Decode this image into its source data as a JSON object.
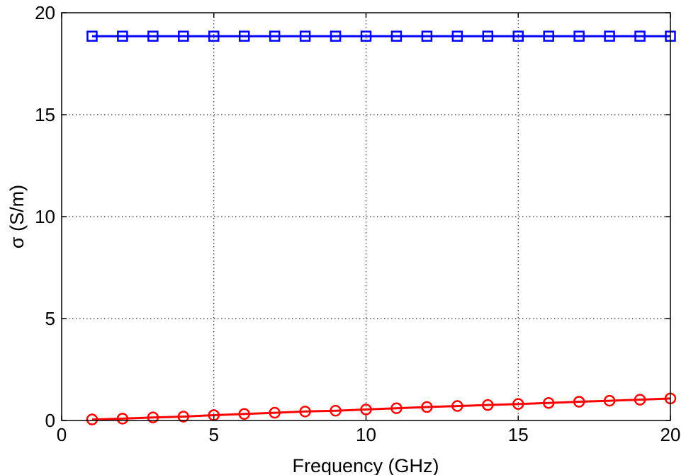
{
  "chart_data": {
    "type": "line",
    "title": "",
    "xlabel": "Frequency (GHz)",
    "ylabel": "σ (S/m)",
    "xlim": [
      0,
      20
    ],
    "ylim": [
      0,
      20
    ],
    "xticks": [
      0,
      5,
      10,
      15,
      20
    ],
    "yticks": [
      0,
      5,
      10,
      15,
      20
    ],
    "grid": true,
    "x": [
      1,
      2,
      3,
      4,
      5,
      6,
      7,
      8,
      9,
      10,
      11,
      12,
      13,
      14,
      15,
      16,
      17,
      18,
      19,
      20
    ],
    "series": [
      {
        "color": "#0000ff",
        "marker": "square",
        "values": [
          18.85,
          18.85,
          18.85,
          18.85,
          18.85,
          18.85,
          18.85,
          18.85,
          18.85,
          18.85,
          18.85,
          18.85,
          18.85,
          18.85,
          18.85,
          18.85,
          18.85,
          18.85,
          18.85,
          18.85
        ]
      },
      {
        "color": "#ff0000",
        "marker": "circle",
        "values": [
          0.05,
          0.09,
          0.15,
          0.19,
          0.26,
          0.32,
          0.38,
          0.44,
          0.48,
          0.54,
          0.6,
          0.66,
          0.71,
          0.76,
          0.81,
          0.86,
          0.92,
          0.97,
          1.02,
          1.08
        ]
      }
    ]
  }
}
